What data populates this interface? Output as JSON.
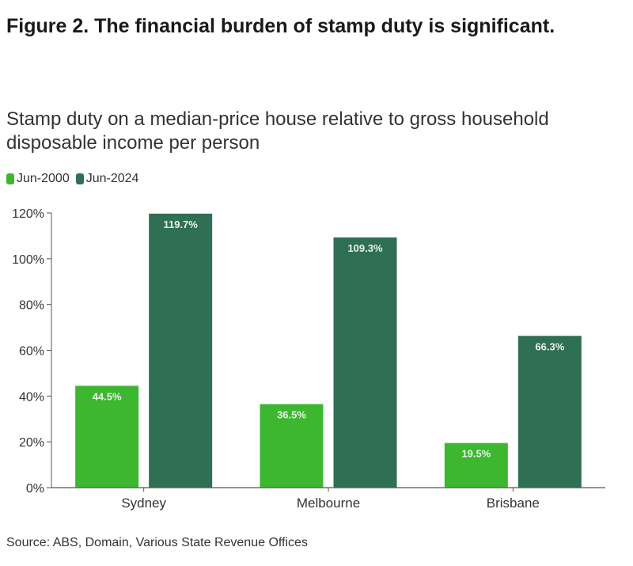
{
  "figure_title": "Figure 2. The financial burden of stamp duty is significant.",
  "source": "Source: ABS, Domain, Various State Revenue Offices",
  "colors": {
    "jun_2000": "#3cb72f",
    "jun_2024": "#2f6f53",
    "axis": "#555555"
  },
  "chart_data": {
    "type": "bar",
    "title": "Stamp duty on a median-price house relative to gross household disposable income per person",
    "categories": [
      "Sydney",
      "Melbourne",
      "Brisbane"
    ],
    "series": [
      {
        "name": "Jun-2000",
        "values": [
          44.5,
          36.5,
          19.5
        ],
        "labels": [
          "44.5%",
          "36.5%",
          "19.5%"
        ]
      },
      {
        "name": "Jun-2024",
        "values": [
          119.7,
          109.3,
          66.3
        ],
        "labels": [
          "119.7%",
          "109.3%",
          "66.3%"
        ]
      }
    ],
    "yticks": [
      0,
      20,
      40,
      60,
      80,
      100,
      120
    ],
    "ytick_labels": [
      "0%",
      "20%",
      "40%",
      "60%",
      "80%",
      "100%",
      "120%"
    ],
    "ylim": [
      0,
      120
    ],
    "xlabel": "",
    "ylabel": "",
    "grid": false,
    "legend_position": "top-left"
  }
}
